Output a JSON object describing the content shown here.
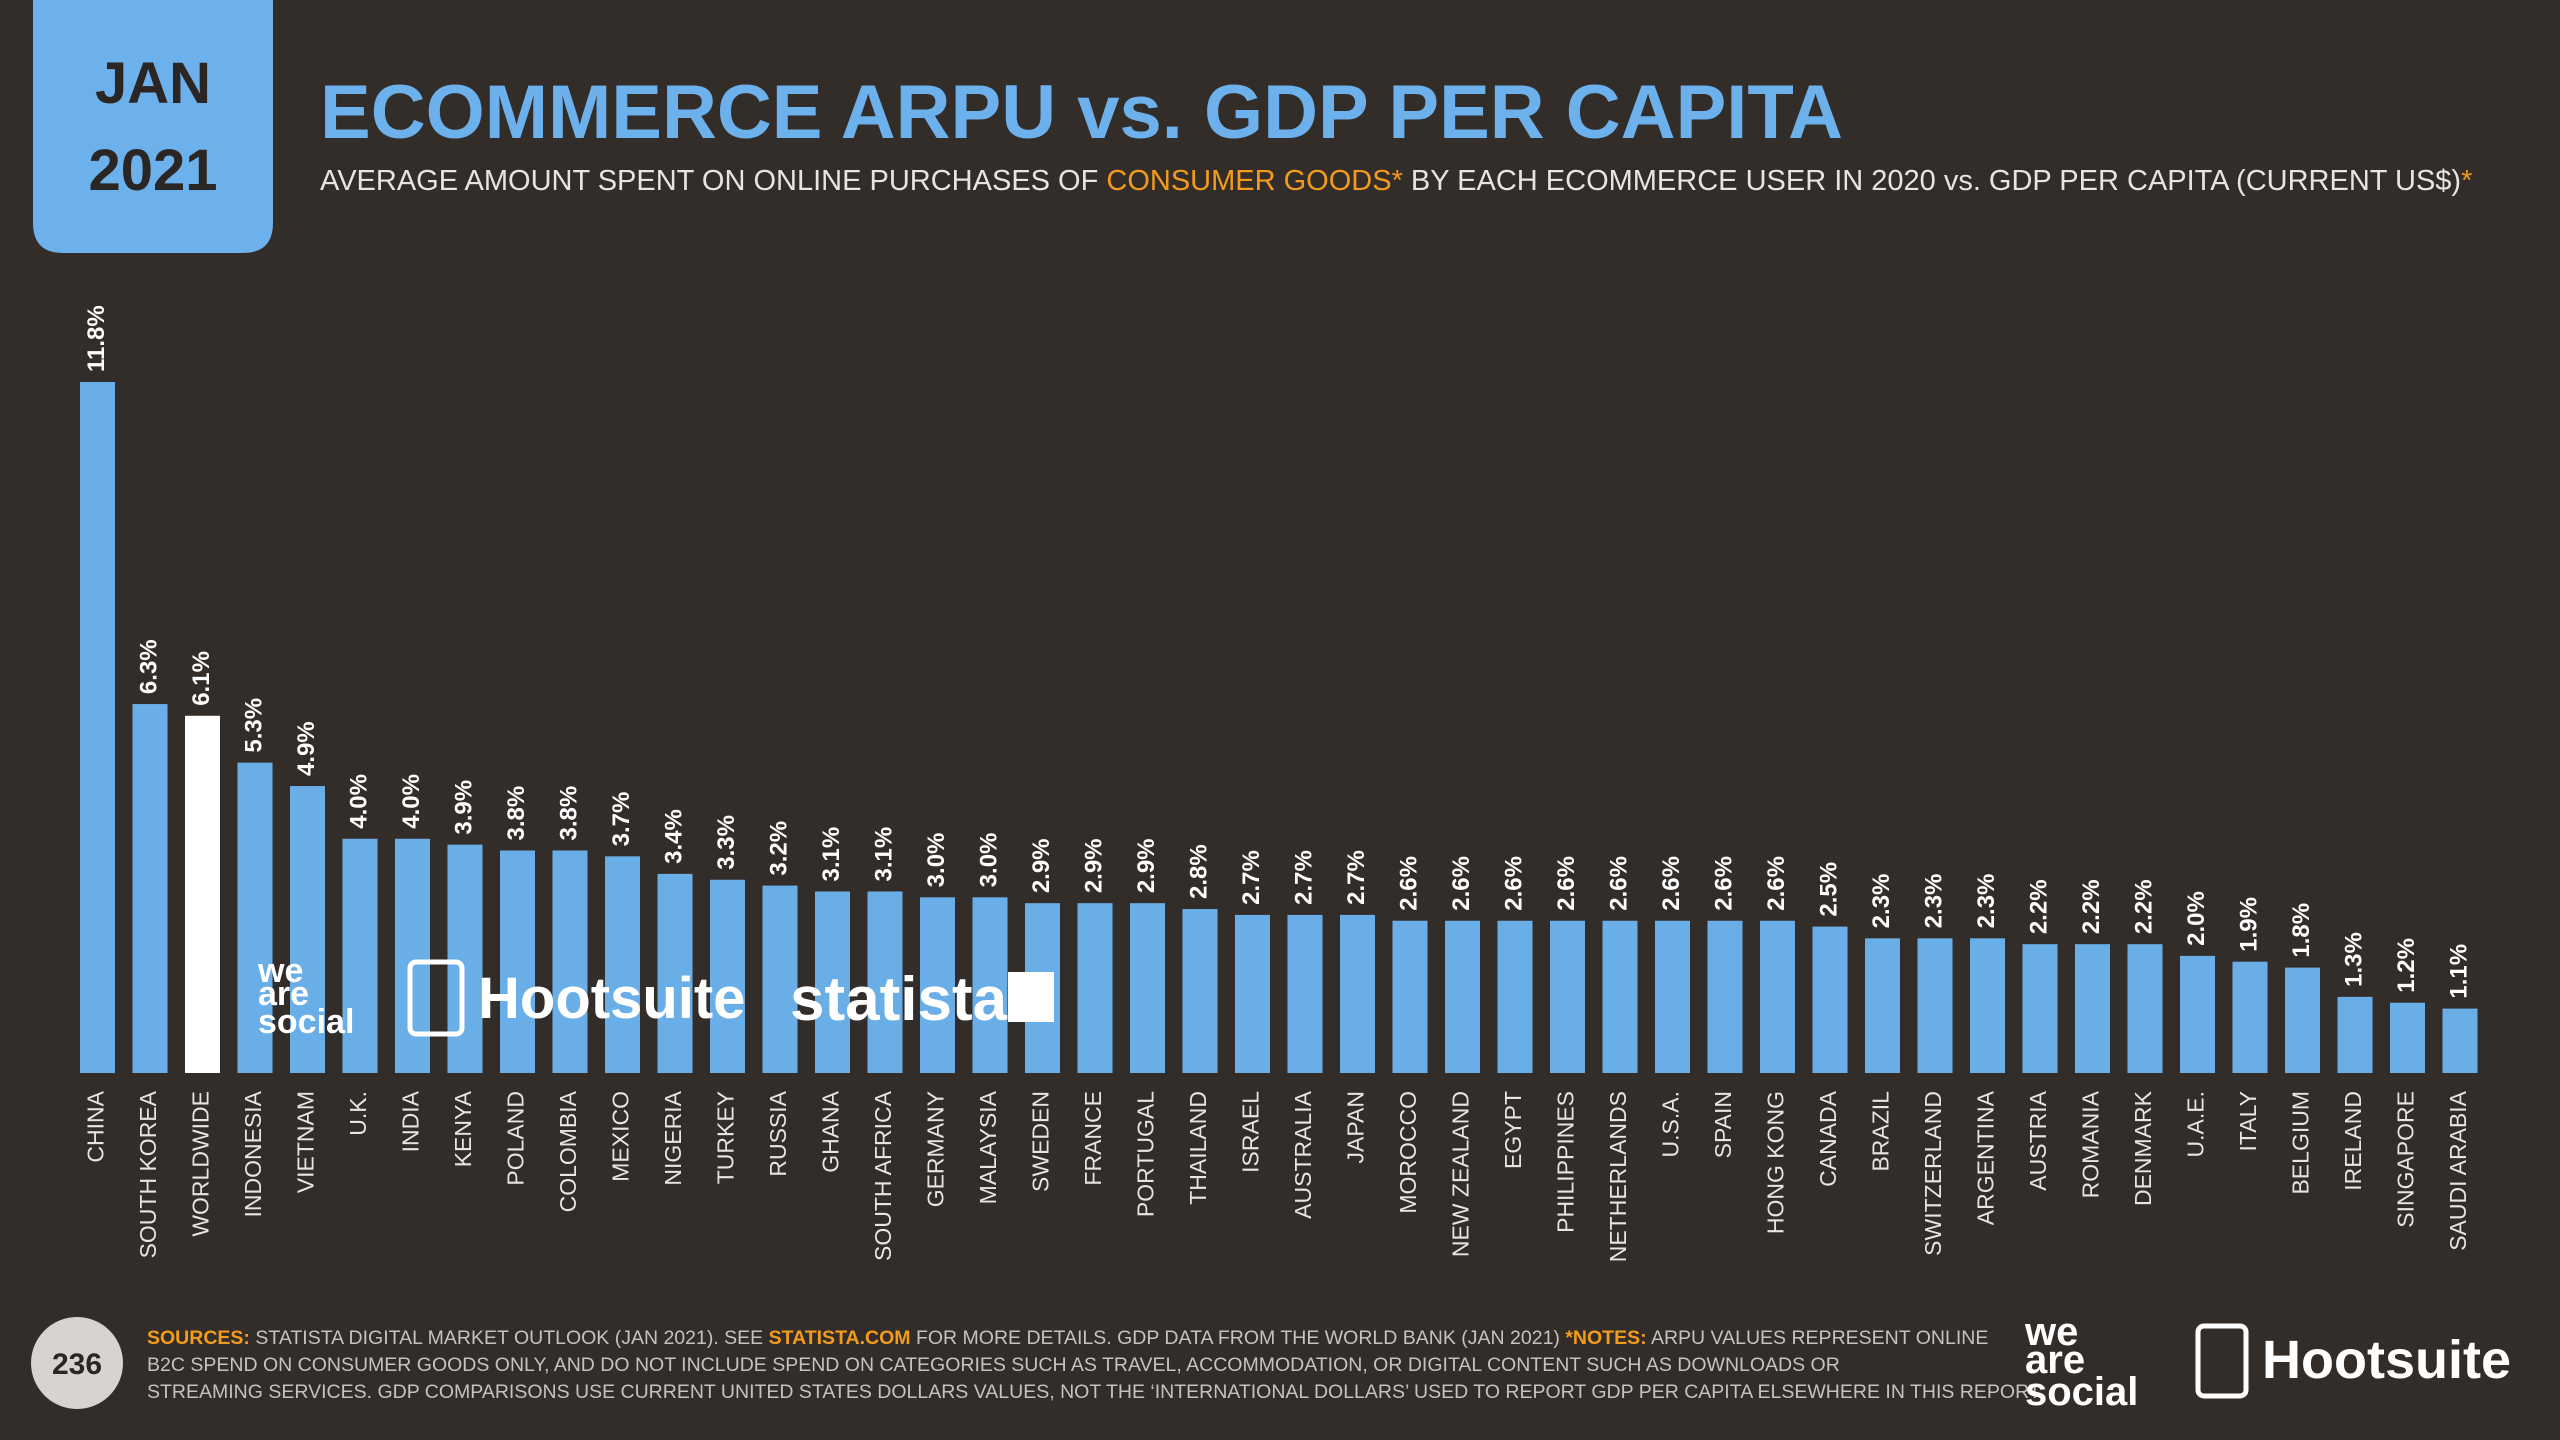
{
  "header": {
    "date": [
      "JAN",
      "2021"
    ],
    "title": "ECOMMERCE ARPU vs. GDP PER CAPITA",
    "subtitle": [
      {
        "text": "AVERAGE AMOUNT SPENT ON ONLINE PURCHASES OF ",
        "accent": false
      },
      {
        "text": "CONSUMER GOODS*",
        "accent": true
      },
      {
        "text": " BY EACH ECOMMERCE USER IN 2020 vs. GDP PER CAPITA (CURRENT US$)",
        "accent": false
      },
      {
        "text": "*",
        "accent": true
      }
    ]
  },
  "chart_data": {
    "type": "bar",
    "categories": [
      "CHINA",
      "SOUTH KOREA",
      "WORLDWIDE",
      "INDONESIA",
      "VIETNAM",
      "U.K.",
      "INDIA",
      "KENYA",
      "POLAND",
      "COLOMBIA",
      "MEXICO",
      "NIGERIA",
      "TURKEY",
      "RUSSIA",
      "GHANA",
      "SOUTH AFRICA",
      "GERMANY",
      "MALAYSIA",
      "SWEDEN",
      "FRANCE",
      "PORTUGAL",
      "THAILAND",
      "ISRAEL",
      "AUSTRALIA",
      "JAPAN",
      "MOROCCO",
      "NEW ZEALAND",
      "EGYPT",
      "PHILIPPINES",
      "NETHERLANDS",
      "U.S.A.",
      "SPAIN",
      "HONG KONG",
      "CANADA",
      "BRAZIL",
      "SWITZERLAND",
      "ARGENTINA",
      "AUSTRIA",
      "ROMANIA",
      "DENMARK",
      "U.A.E.",
      "ITALY",
      "BELGIUM",
      "IRELAND",
      "SINGAPORE",
      "SAUDI ARABIA"
    ],
    "values": [
      11.8,
      6.3,
      6.1,
      5.3,
      4.9,
      4.0,
      4.0,
      3.9,
      3.8,
      3.8,
      3.7,
      3.4,
      3.3,
      3.2,
      3.1,
      3.1,
      3.0,
      3.0,
      2.9,
      2.9,
      2.9,
      2.8,
      2.7,
      2.7,
      2.7,
      2.6,
      2.6,
      2.6,
      2.6,
      2.6,
      2.6,
      2.6,
      2.6,
      2.5,
      2.3,
      2.3,
      2.3,
      2.2,
      2.2,
      2.2,
      2.0,
      1.9,
      1.8,
      1.3,
      1.2,
      1.1
    ],
    "value_labels": [
      "11.8%",
      "6.3%",
      "6.1%",
      "5.3%",
      "4.9%",
      "4.0%",
      "4.0%",
      "3.9%",
      "3.8%",
      "3.8%",
      "3.7%",
      "3.4%",
      "3.3%",
      "3.2%",
      "3.1%",
      "3.1%",
      "3.0%",
      "3.0%",
      "2.9%",
      "2.9%",
      "2.9%",
      "2.8%",
      "2.7%",
      "2.7%",
      "2.7%",
      "2.6%",
      "2.6%",
      "2.6%",
      "2.6%",
      "2.6%",
      "2.6%",
      "2.6%",
      "2.6%",
      "2.5%",
      "2.3%",
      "2.3%",
      "2.3%",
      "2.2%",
      "2.2%",
      "2.2%",
      "2.0%",
      "1.9%",
      "1.8%",
      "1.3%",
      "1.2%",
      "1.1%"
    ],
    "colors": [
      "#6aaee8",
      "#6aaee8",
      "#ffffff",
      "#6aaee8",
      "#6aaee8",
      "#6aaee8",
      "#6aaee8",
      "#6aaee8",
      "#6aaee8",
      "#6aaee8",
      "#6aaee8",
      "#6aaee8",
      "#6aaee8",
      "#6aaee8",
      "#6aaee8",
      "#6aaee8",
      "#6aaee8",
      "#6aaee8",
      "#6aaee8",
      "#6aaee8",
      "#6aaee8",
      "#6aaee8",
      "#6aaee8",
      "#6aaee8",
      "#6aaee8",
      "#6aaee8",
      "#6aaee8",
      "#6aaee8",
      "#6aaee8",
      "#6aaee8",
      "#6aaee8",
      "#6aaee8",
      "#6aaee8",
      "#6aaee8",
      "#6aaee8",
      "#6aaee8",
      "#6aaee8",
      "#6aaee8",
      "#6aaee8",
      "#6aaee8",
      "#6aaee8",
      "#6aaee8",
      "#6aaee8",
      "#6aaee8",
      "#6aaee8",
      "#6aaee8"
    ]
  },
  "logos": {
    "we_are_social": [
      "we",
      "are",
      "social"
    ],
    "hootsuite": "Hootsuite",
    "statista": "statista"
  },
  "footer": {
    "page": "236",
    "lines": [
      [
        {
          "text": "SOURCES:",
          "accent": true
        },
        {
          "text": " STATISTA DIGITAL MARKET OUTLOOK (JAN 2021). SEE ",
          "accent": false
        },
        {
          "text": "STATISTA.COM",
          "accent": true
        },
        {
          "text": " FOR MORE DETAILS. GDP DATA FROM THE WORLD BANK (JAN 2021) ",
          "accent": false
        },
        {
          "text": "*NOTES:",
          "accent": true
        },
        {
          "text": " ARPU VALUES REPRESENT ONLINE",
          "accent": false
        }
      ],
      [
        {
          "text": "B2C SPEND ON CONSUMER GOODS ONLY, AND DO NOT INCLUDE SPEND ON CATEGORIES SUCH AS TRAVEL, ACCOMMODATION, OR DIGITAL CONTENT SUCH AS DOWNLOADS OR",
          "accent": false
        }
      ],
      [
        {
          "text": "STREAMING SERVICES. GDP COMPARISONS USE CURRENT UNITED STATES DOLLARS VALUES, NOT THE ‘INTERNATIONAL DOLLARS’ USED TO REPORT GDP PER CAPITA ELSEWHERE IN THIS REPORT.",
          "accent": false
        }
      ]
    ]
  }
}
